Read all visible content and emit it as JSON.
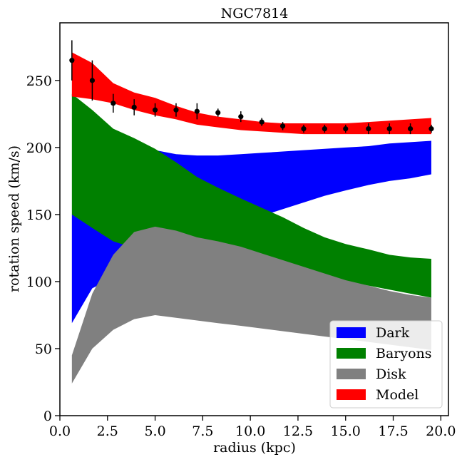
{
  "chart_data": {
    "type": "area",
    "title": "NGC7814",
    "xlabel": "radius (kpc)",
    "ylabel": "rotation speed (km/s)",
    "xlim": [
      0,
      20.4
    ],
    "ylim": [
      0,
      293
    ],
    "x_ticks": [
      "0.0",
      "2.5",
      "5.0",
      "7.5",
      "10.0",
      "12.5",
      "15.0",
      "17.5",
      "20.0"
    ],
    "y_ticks": [
      "0",
      "50",
      "100",
      "150",
      "200",
      "250"
    ],
    "legend_position": "lower-right",
    "series": [
      {
        "name": "Dark",
        "color": "#0000ff",
        "x": [
          0.63,
          1.7,
          2.8,
          3.9,
          5.0,
          6.1,
          7.2,
          8.3,
          9.5,
          10.6,
          11.7,
          12.8,
          13.9,
          15.0,
          16.2,
          17.3,
          18.4,
          19.5
        ],
        "lower": [
          69,
          95,
          103,
          115,
          120,
          127,
          130,
          136,
          143,
          149,
          154,
          159,
          164,
          168,
          172,
          175,
          177,
          180
        ],
        "upper": [
          150,
          200,
          202,
          200,
          198,
          195,
          194,
          194,
          195,
          196,
          197,
          198,
          199,
          200,
          201,
          203,
          204,
          205
        ]
      },
      {
        "name": "Baryons",
        "color": "#008000",
        "x": [
          0.63,
          1.7,
          2.8,
          3.9,
          5.0,
          6.1,
          7.2,
          8.3,
          9.5,
          10.6,
          11.7,
          12.8,
          13.9,
          15.0,
          16.2,
          17.3,
          18.4,
          19.5
        ],
        "lower": [
          150,
          140,
          130,
          125,
          121,
          117,
          114,
          112,
          110,
          108,
          106,
          104,
          102,
          100,
          97,
          94,
          91,
          88
        ],
        "upper": [
          240,
          228,
          214,
          207,
          199,
          189,
          178,
          170,
          162,
          155,
          148,
          140,
          133,
          128,
          124,
          120,
          118,
          117
        ]
      },
      {
        "name": "Disk",
        "color": "#808080",
        "x": [
          0.63,
          1.7,
          2.8,
          3.9,
          5.0,
          6.1,
          7.2,
          8.3,
          9.5,
          10.6,
          11.7,
          12.8,
          13.9,
          15.0,
          16.2,
          17.3,
          18.4,
          19.5
        ],
        "lower": [
          24,
          50,
          64,
          72,
          75,
          73,
          71,
          69,
          67,
          65,
          63,
          61,
          59,
          57,
          55,
          53,
          51,
          49
        ],
        "upper": [
          45,
          91,
          120,
          137,
          141,
          138,
          133,
          130,
          126,
          121,
          116,
          111,
          106,
          101,
          97,
          93,
          90,
          88
        ]
      },
      {
        "name": "Model",
        "color": "#ff0000",
        "x": [
          0.63,
          1.7,
          2.8,
          3.9,
          5.0,
          6.1,
          7.2,
          8.3,
          9.5,
          10.6,
          11.7,
          12.8,
          13.9,
          15.0,
          16.2,
          17.3,
          18.4,
          19.5
        ],
        "lower": [
          238,
          236,
          233,
          228,
          224,
          221,
          217,
          215,
          213,
          212,
          211,
          210,
          210,
          210,
          210,
          210,
          210,
          210
        ],
        "upper": [
          271,
          263,
          248,
          241,
          237,
          231,
          226,
          223,
          221,
          219,
          218,
          218,
          218,
          218,
          219,
          220,
          221,
          222
        ]
      }
    ],
    "observed": {
      "color": "#000000",
      "x": [
        0.63,
        1.7,
        2.8,
        3.9,
        5.0,
        6.1,
        7.2,
        8.3,
        9.5,
        10.6,
        11.7,
        12.8,
        13.9,
        15.0,
        16.2,
        17.3,
        18.4,
        19.5
      ],
      "y": [
        265,
        250,
        233,
        230,
        228,
        228,
        227,
        226,
        223,
        219,
        216,
        214,
        214,
        214,
        214,
        214,
        214,
        214
      ],
      "err": [
        15,
        15,
        7,
        6,
        5,
        5,
        6,
        3,
        4,
        3,
        3,
        3,
        3,
        3,
        4,
        4,
        4,
        3
      ]
    }
  }
}
